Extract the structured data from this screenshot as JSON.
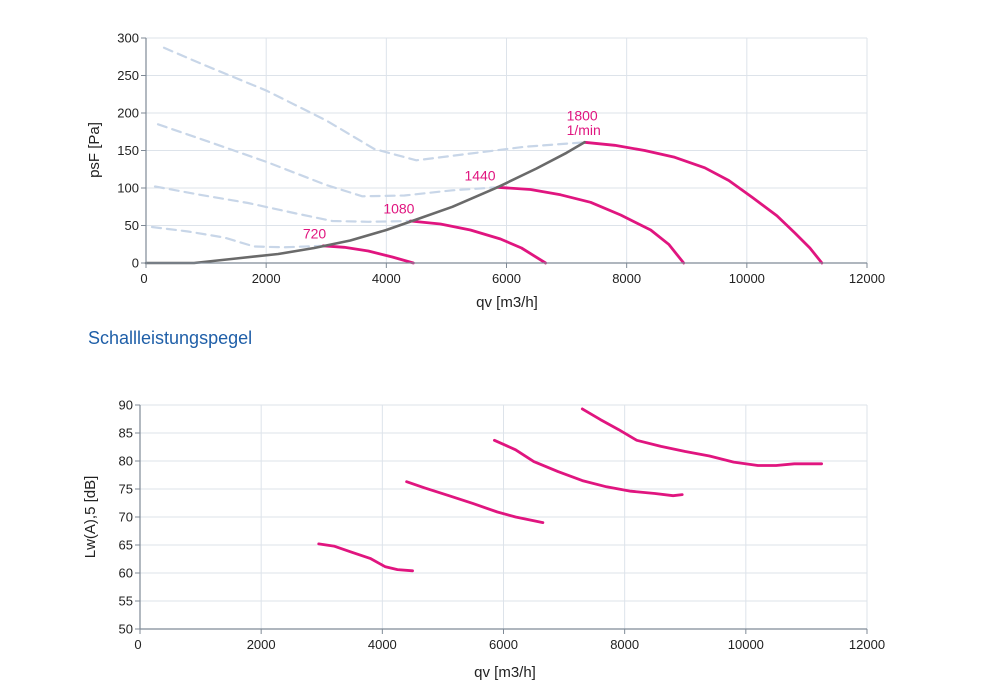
{
  "section_heading": "Schallleistungspegel",
  "colors": {
    "curve": "#e0157f",
    "operating_line": "#6a6a6a",
    "dashed": "#c8d6e8",
    "grid": "#dde3ea",
    "axis": "#7f8a96",
    "heading": "#1f5fa8"
  },
  "chart_data": [
    {
      "type": "line",
      "xlabel": "qv [m3/h]",
      "ylabel": "psF [Pa]",
      "xlim": [
        0,
        12000
      ],
      "ylim": [
        0,
        300
      ],
      "x_ticks": [
        0,
        2000,
        4000,
        6000,
        8000,
        10000,
        12000
      ],
      "y_ticks": [
        0,
        50,
        100,
        150,
        200,
        250,
        300
      ],
      "grid": true,
      "series": [
        {
          "name": "720",
          "style": "solid",
          "color": "#e0157f",
          "label_at": [
            2610,
            33
          ],
          "points": [
            [
              2950,
              23
            ],
            [
              3300,
              21
            ],
            [
              3700,
              16
            ],
            [
              4100,
              8
            ],
            [
              4450,
              0
            ]
          ]
        },
        {
          "name": "1080",
          "style": "solid",
          "color": "#e0157f",
          "label_at": [
            3950,
            66
          ],
          "points": [
            [
              4400,
              56
            ],
            [
              4900,
              52
            ],
            [
              5400,
              44
            ],
            [
              5900,
              32
            ],
            [
              6250,
              20
            ],
            [
              6650,
              0
            ]
          ]
        },
        {
          "name": "1440",
          "style": "solid",
          "color": "#e0157f",
          "label_at": [
            5300,
            110
          ],
          "points": [
            [
              5850,
              101
            ],
            [
              6400,
              98
            ],
            [
              6900,
              91
            ],
            [
              7400,
              81
            ],
            [
              7900,
              64
            ],
            [
              8400,
              44
            ],
            [
              8700,
              25
            ],
            [
              8950,
              0
            ]
          ]
        },
        {
          "name": "1800",
          "style": "solid",
          "color": "#e0157f",
          "label_at": [
            7000,
            190
          ],
          "points": [
            [
              7300,
              161
            ],
            [
              7800,
              157
            ],
            [
              8300,
              150
            ],
            [
              8800,
              141
            ],
            [
              9300,
              127
            ],
            [
              9700,
              110
            ],
            [
              10100,
              87
            ],
            [
              10500,
              63
            ],
            [
              10800,
              40
            ],
            [
              11050,
              20
            ],
            [
              11250,
              0
            ]
          ]
        },
        {
          "style": "solid",
          "color": "#6a6a6a",
          "points": [
            [
              0,
              0
            ],
            [
              800,
              0
            ],
            [
              1500,
              6
            ],
            [
              2200,
              12
            ],
            [
              2800,
              20
            ],
            [
              3400,
              30
            ],
            [
              4000,
              44
            ],
            [
              4500,
              58
            ],
            [
              5100,
              75
            ],
            [
              5850,
              101
            ],
            [
              6500,
              126
            ],
            [
              7000,
              147
            ],
            [
              7300,
              161
            ]
          ]
        },
        {
          "style": "dashed",
          "color": "#c8d6e8",
          "points": [
            [
              300,
              287
            ],
            [
              1000,
              263
            ],
            [
              2000,
              230
            ],
            [
              3000,
              190
            ],
            [
              3800,
              152
            ],
            [
              4500,
              137
            ],
            [
              5300,
              145
            ],
            [
              6300,
              155
            ],
            [
              7300,
              161
            ]
          ]
        },
        {
          "style": "dashed",
          "color": "#c8d6e8",
          "points": [
            [
              200,
              185
            ],
            [
              1000,
              163
            ],
            [
              2000,
              135
            ],
            [
              3000,
              104
            ],
            [
              3600,
              89
            ],
            [
              4300,
              90
            ],
            [
              5100,
              97
            ],
            [
              5850,
              101
            ]
          ]
        },
        {
          "style": "dashed",
          "color": "#c8d6e8",
          "points": [
            [
              150,
              102
            ],
            [
              900,
              91
            ],
            [
              1700,
              80
            ],
            [
              2500,
              66
            ],
            [
              3100,
              56
            ],
            [
              3700,
              55
            ],
            [
              4400,
              56
            ]
          ]
        },
        {
          "style": "dashed",
          "color": "#c8d6e8",
          "points": [
            [
              100,
              48
            ],
            [
              700,
              42
            ],
            [
              1300,
              34
            ],
            [
              1800,
              22
            ],
            [
              2300,
              21
            ],
            [
              2950,
              23
            ]
          ]
        }
      ],
      "annotations": [
        {
          "text": "1/min",
          "at": [
            7000,
            171
          ]
        }
      ]
    },
    {
      "type": "line",
      "xlabel": "qv [m3/h]",
      "ylabel": "Lw(A),5 [dB]",
      "xlim": [
        0,
        12000
      ],
      "ylim": [
        50,
        90
      ],
      "x_ticks": [
        0,
        2000,
        4000,
        6000,
        8000,
        10000,
        12000
      ],
      "y_ticks": [
        50,
        55,
        60,
        65,
        70,
        75,
        80,
        85,
        90
      ],
      "grid": true,
      "series": [
        {
          "name": "720",
          "style": "solid",
          "color": "#e0157f",
          "points": [
            [
              2950,
              65.2
            ],
            [
              3200,
              64.8
            ],
            [
              3500,
              63.7
            ],
            [
              3800,
              62.6
            ],
            [
              4050,
              61.1
            ],
            [
              4250,
              60.6
            ],
            [
              4500,
              60.4
            ]
          ]
        },
        {
          "name": "1080",
          "style": "solid",
          "color": "#e0157f",
          "points": [
            [
              4400,
              76.3
            ],
            [
              4700,
              75.2
            ],
            [
              5100,
              73.8
            ],
            [
              5500,
              72.4
            ],
            [
              5900,
              70.9
            ],
            [
              6200,
              70.0
            ],
            [
              6650,
              69.0
            ]
          ]
        },
        {
          "name": "1440",
          "style": "solid",
          "color": "#e0157f",
          "points": [
            [
              5850,
              83.7
            ],
            [
              6200,
              82.0
            ],
            [
              6500,
              79.9
            ],
            [
              6900,
              78.1
            ],
            [
              7300,
              76.5
            ],
            [
              7700,
              75.4
            ],
            [
              8100,
              74.6
            ],
            [
              8500,
              74.2
            ],
            [
              8800,
              73.8
            ],
            [
              8950,
              74.0
            ]
          ]
        },
        {
          "name": "1800",
          "style": "solid",
          "color": "#e0157f",
          "points": [
            [
              7300,
              89.3
            ],
            [
              7600,
              87.4
            ],
            [
              7900,
              85.6
            ],
            [
              8200,
              83.7
            ],
            [
              8600,
              82.6
            ],
            [
              9000,
              81.7
            ],
            [
              9400,
              80.9
            ],
            [
              9800,
              79.8
            ],
            [
              10200,
              79.2
            ],
            [
              10500,
              79.2
            ],
            [
              10800,
              79.5
            ],
            [
              11250,
              79.5
            ]
          ]
        }
      ]
    }
  ]
}
